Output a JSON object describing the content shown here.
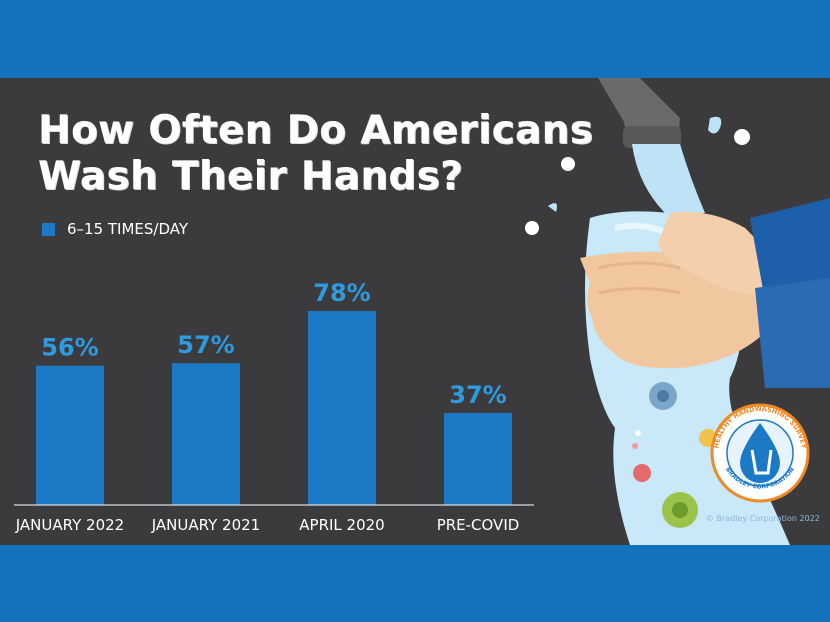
{
  "title": {
    "line1": "How Often Do Americans",
    "line2": "Wash Their Hands?"
  },
  "badge": {
    "top_text": "HEALTHY HANDWASHING SURVEY",
    "bottom_text": "BRADLEY CORPORATION"
  },
  "copyright": "© Bradley Corporation 2022",
  "colors": {
    "bar": "#1c79c6",
    "value_label": "#2e9be0",
    "panel": "#3b3b3d",
    "band": "#1372bb"
  },
  "chart_data": {
    "type": "bar",
    "title": "How Often Do Americans Wash Their Hands?",
    "legend": [
      "6–15 TIMES/DAY"
    ],
    "legend_position": "top-left",
    "categories": [
      "JANUARY 2022",
      "JANUARY 2021",
      "APRIL 2020",
      "PRE-COVID"
    ],
    "series": [
      {
        "name": "6–15 TIMES/DAY",
        "values": [
          56,
          57,
          78,
          37
        ],
        "labels": [
          "56%",
          "57%",
          "78%",
          "37%"
        ]
      }
    ],
    "xlabel": "",
    "ylabel": "",
    "ylim": [
      0,
      100
    ],
    "grid": false
  }
}
